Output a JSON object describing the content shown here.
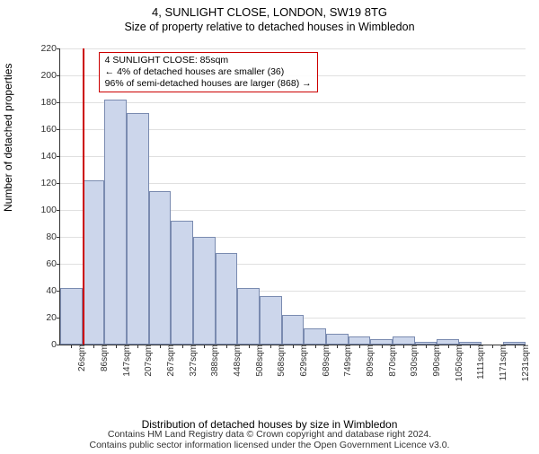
{
  "title": "4, SUNLIGHT CLOSE, LONDON, SW19 8TG",
  "subtitle": "Size of property relative to detached houses in Wimbledon",
  "ylabel": "Number of detached properties",
  "xlabel": "Distribution of detached houses by size in Wimbledon",
  "footer_line1": "Contains HM Land Registry data © Crown copyright and database right 2024.",
  "footer_line2": "Contains public sector information licensed under the Open Government Licence v3.0.",
  "chart": {
    "type": "bar",
    "ylim": [
      0,
      220
    ],
    "ytick_step": 20,
    "bar_fill": "#ccd6eb",
    "bar_stroke": "#7a8bb0",
    "grid_color": "#e0e0e0",
    "axis_color": "#333333",
    "background_color": "#ffffff",
    "ref_line_color": "#cc0000",
    "ref_line_position": 1,
    "categories": [
      "26sqm",
      "86sqm",
      "147sqm",
      "207sqm",
      "267sqm",
      "327sqm",
      "388sqm",
      "448sqm",
      "508sqm",
      "568sqm",
      "629sqm",
      "689sqm",
      "749sqm",
      "809sqm",
      "870sqm",
      "930sqm",
      "990sqm",
      "1050sqm",
      "1111sqm",
      "1171sqm",
      "1231sqm"
    ],
    "values": [
      42,
      122,
      182,
      172,
      114,
      92,
      80,
      68,
      42,
      36,
      22,
      12,
      8,
      6,
      4,
      6,
      2,
      4,
      2,
      0,
      2
    ],
    "label_fontsize": 12,
    "tick_fontsize": 10.5
  },
  "annotation": {
    "line1": "4 SUNLIGHT CLOSE: 85sqm",
    "line2": "← 4% of detached houses are smaller (36)",
    "line3": "96% of semi-detached houses are larger (868) →",
    "border_color": "#cc0000"
  }
}
